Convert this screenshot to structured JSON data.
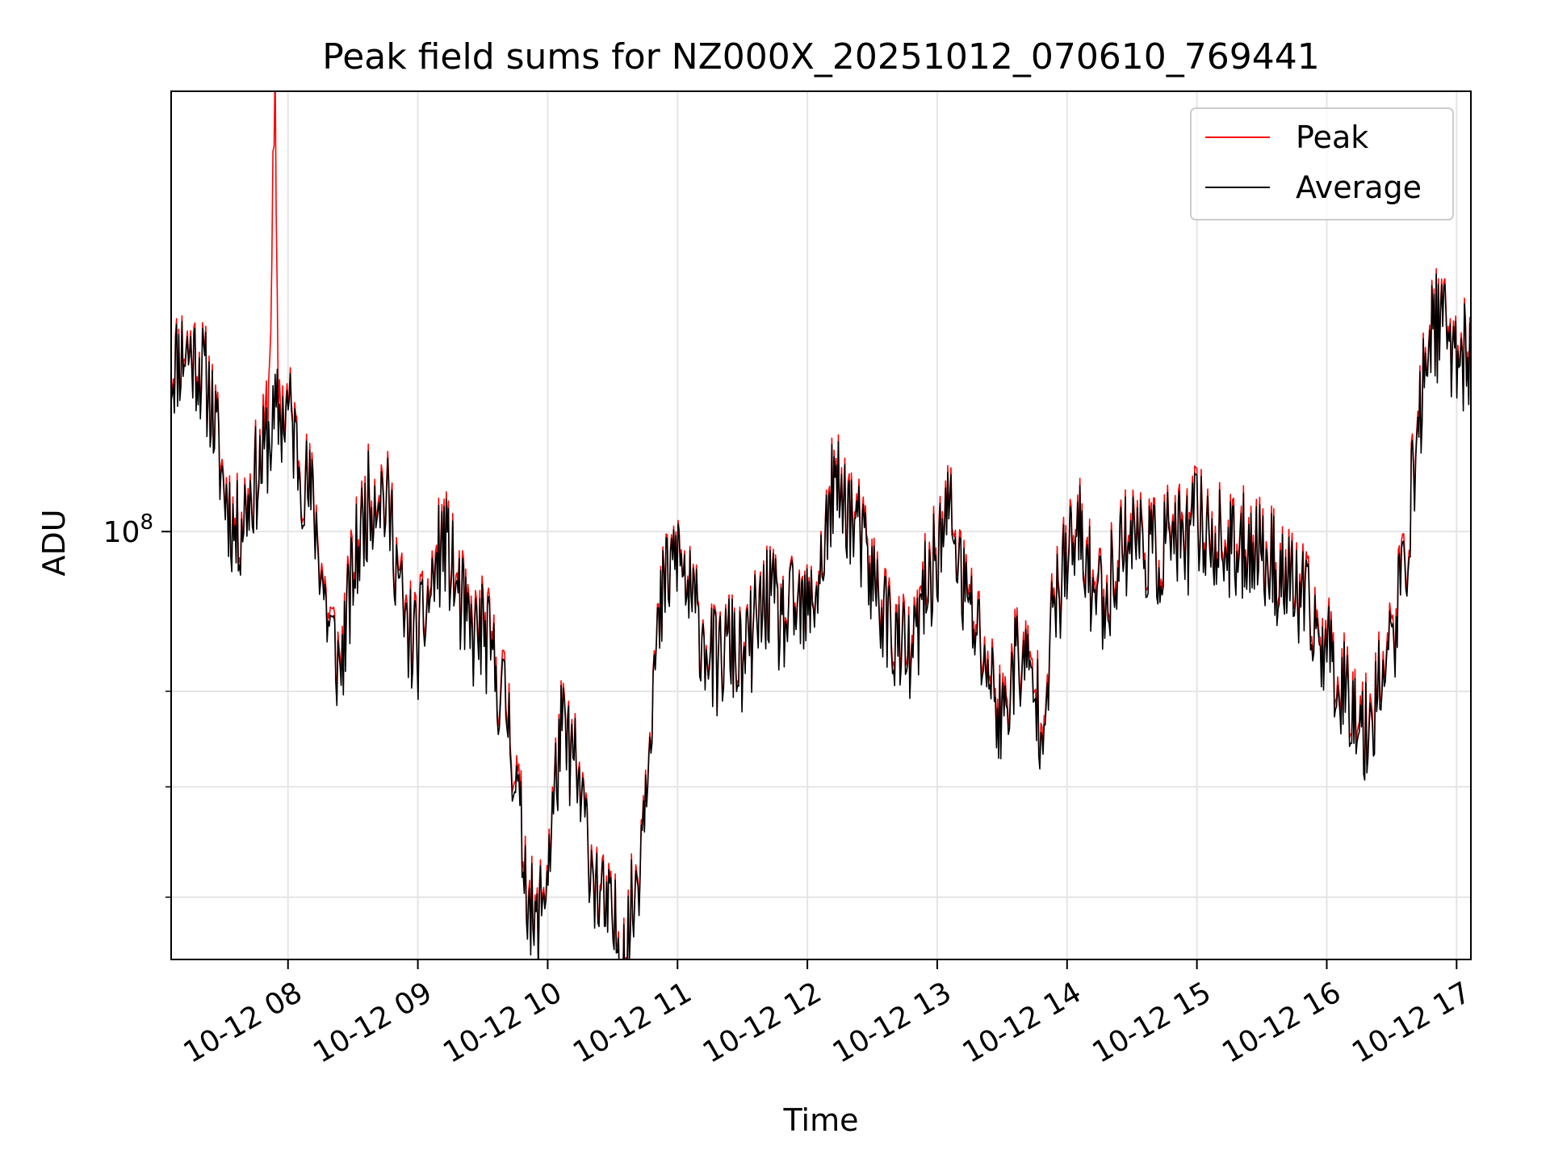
{
  "chart_data": {
    "type": "line",
    "title": "Peak field sums for NZ000X_20251012_070610_769441",
    "xlabel": "Time",
    "ylabel": "ADU",
    "yscale": "log",
    "grid": true,
    "legend_position": "top-right",
    "xlim_hours": [
      7.1,
      17.11
    ],
    "ylim": [
      55000000,
      185000000
    ],
    "x_ticks": [
      {
        "hour": 8,
        "label": "10-12 08"
      },
      {
        "hour": 9,
        "label": "10-12 09"
      },
      {
        "hour": 10,
        "label": "10-12 10"
      },
      {
        "hour": 11,
        "label": "10-12 11"
      },
      {
        "hour": 12,
        "label": "10-12 12"
      },
      {
        "hour": 13,
        "label": "10-12 13"
      },
      {
        "hour": 14,
        "label": "10-12 14"
      },
      {
        "hour": 15,
        "label": "10-12 15"
      },
      {
        "hour": 16,
        "label": "10-12 16"
      },
      {
        "hour": 17,
        "label": "10-12 17"
      }
    ],
    "y_major_ticks": [
      {
        "value": 100000000,
        "label_base": "10",
        "label_exp": "8"
      }
    ],
    "y_minor_ticks": [
      60000000,
      70000000,
      80000000
    ],
    "series": [
      {
        "name": "Peak",
        "color": "#ff0000",
        "hours": [
          7.1,
          7.2,
          7.3,
          7.4,
          7.5,
          7.6,
          7.7,
          7.8,
          7.85,
          7.9,
          7.92,
          7.95,
          8.0,
          8.1,
          8.2,
          8.3,
          8.4,
          8.5,
          8.6,
          8.7,
          8.8,
          8.9,
          9.0,
          9.1,
          9.2,
          9.3,
          9.4,
          9.5,
          9.6,
          9.7,
          9.8,
          9.9,
          10.0,
          10.1,
          10.2,
          10.3,
          10.4,
          10.5,
          10.6,
          10.7,
          10.8,
          10.9,
          11.0,
          11.1,
          11.2,
          11.3,
          11.4,
          11.5,
          11.6,
          11.7,
          11.8,
          11.9,
          12.0,
          12.1,
          12.2,
          12.3,
          12.4,
          12.5,
          12.6,
          12.7,
          12.8,
          12.9,
          13.0,
          13.1,
          13.2,
          13.3,
          13.4,
          13.5,
          13.6,
          13.7,
          13.8,
          13.9,
          14.0,
          14.1,
          14.2,
          14.3,
          14.4,
          14.5,
          14.6,
          14.7,
          14.8,
          14.9,
          15.0,
          15.1,
          15.2,
          15.3,
          15.4,
          15.5,
          15.6,
          15.7,
          15.8,
          15.9,
          16.0,
          16.1,
          16.2,
          16.3,
          16.4,
          16.5,
          16.6,
          16.7,
          16.8,
          16.9,
          17.0,
          17.11
        ],
        "values": [
          126000000,
          130000000,
          128000000,
          122000000,
          108000000,
          100000000,
          106000000,
          111000000,
          120000000,
          183000000,
          124000000,
          119000000,
          120000000,
          110000000,
          104000000,
          90000000,
          83000000,
          95000000,
          104000000,
          108000000,
          102000000,
          88000000,
          86000000,
          93000000,
          100000000,
          93000000,
          87000000,
          88000000,
          83000000,
          78000000,
          66000000,
          57000000,
          63000000,
          76000000,
          73000000,
          66000000,
          60000000,
          58000000,
          56000000,
          63000000,
          80000000,
          93000000,
          98000000,
          91000000,
          87000000,
          83000000,
          86000000,
          83000000,
          88000000,
          92000000,
          88000000,
          90000000,
          89000000,
          95000000,
          107000000,
          105000000,
          100000000,
          94000000,
          90000000,
          86000000,
          84000000,
          92000000,
          98000000,
          104000000,
          93000000,
          88000000,
          83000000,
          77000000,
          85000000,
          83000000,
          78000000,
          90000000,
          97000000,
          100000000,
          93000000,
          92000000,
          98000000,
          101000000,
          99000000,
          97000000,
          101000000,
          98000000,
          103000000,
          100000000,
          99000000,
          97000000,
          100000000,
          98000000,
          96000000,
          94000000,
          92000000,
          88000000,
          86000000,
          82000000,
          80000000,
          76000000,
          82000000,
          86000000,
          96000000,
          115000000,
          135000000,
          133000000,
          130000000,
          127000000
        ],
        "jitter": 0.035,
        "seed": 11
      },
      {
        "name": "Average",
        "color": "#000000",
        "hours": [
          7.1,
          7.2,
          7.3,
          7.4,
          7.5,
          7.6,
          7.7,
          7.8,
          7.85,
          7.9,
          7.92,
          7.95,
          8.0,
          8.1,
          8.2,
          8.3,
          8.4,
          8.5,
          8.6,
          8.7,
          8.8,
          8.9,
          9.0,
          9.1,
          9.2,
          9.3,
          9.4,
          9.5,
          9.6,
          9.7,
          9.8,
          9.9,
          10.0,
          10.1,
          10.2,
          10.3,
          10.4,
          10.5,
          10.6,
          10.7,
          10.8,
          10.9,
          11.0,
          11.1,
          11.2,
          11.3,
          11.4,
          11.5,
          11.6,
          11.7,
          11.8,
          11.9,
          12.0,
          12.1,
          12.2,
          12.3,
          12.4,
          12.5,
          12.6,
          12.7,
          12.8,
          12.9,
          13.0,
          13.1,
          13.2,
          13.3,
          13.4,
          13.5,
          13.6,
          13.7,
          13.8,
          13.9,
          14.0,
          14.1,
          14.2,
          14.3,
          14.4,
          14.5,
          14.6,
          14.7,
          14.8,
          14.9,
          15.0,
          15.1,
          15.2,
          15.3,
          15.4,
          15.5,
          15.6,
          15.7,
          15.8,
          15.9,
          16.0,
          16.1,
          16.2,
          16.3,
          16.4,
          16.5,
          16.6,
          16.7,
          16.8,
          16.9,
          17.0,
          17.11
        ],
        "values": [
          125000000,
          129000000,
          127000000,
          121000000,
          107000000,
          99000000,
          105000000,
          110000000,
          114000000,
          116000000,
          118000000,
          117000000,
          119000000,
          109000000,
          103000000,
          89000000,
          82000000,
          94000000,
          103000000,
          107000000,
          101000000,
          87000000,
          85000000,
          92000000,
          99000000,
          92000000,
          86000000,
          87000000,
          82000000,
          77000000,
          65000000,
          56500000,
          62500000,
          75500000,
          72500000,
          65500000,
          59500000,
          57500000,
          55500000,
          62500000,
          79500000,
          92500000,
          97500000,
          90500000,
          86500000,
          82500000,
          85500000,
          82500000,
          87500000,
          91500000,
          87500000,
          89500000,
          88500000,
          94500000,
          106000000,
          104000000,
          99000000,
          93000000,
          89000000,
          85000000,
          83000000,
          91000000,
          97000000,
          103000000,
          92000000,
          87000000,
          82000000,
          76000000,
          84000000,
          82000000,
          77000000,
          89000000,
          96000000,
          99000000,
          92000000,
          91000000,
          97000000,
          100000000,
          98000000,
          96000000,
          100000000,
          97000000,
          102000000,
          99000000,
          98000000,
          96000000,
          99000000,
          97000000,
          95000000,
          93000000,
          91000000,
          87000000,
          85000000,
          81000000,
          79000000,
          75000000,
          81000000,
          85000000,
          95000000,
          114000000,
          134000000,
          132000000,
          129000000,
          126000000
        ],
        "jitter": 0.035,
        "seed": 11
      }
    ]
  }
}
